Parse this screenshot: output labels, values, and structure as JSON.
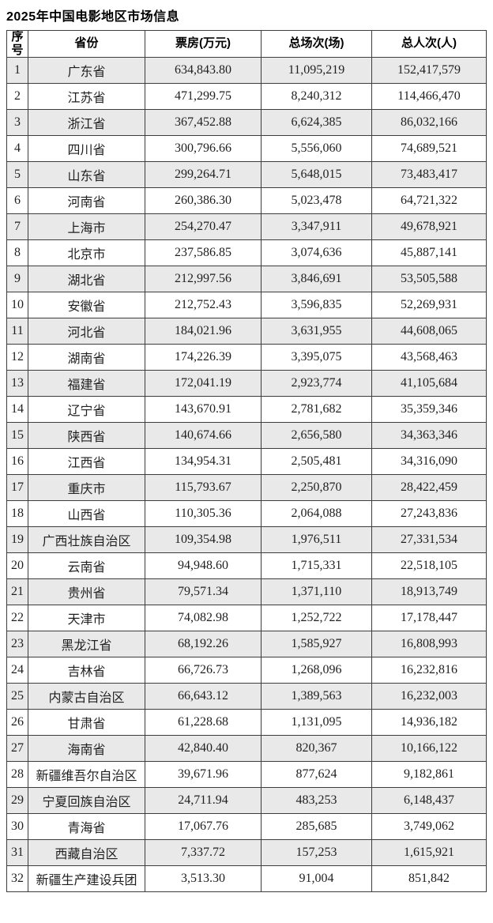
{
  "page_title": "2025年中国电影地区市场信息",
  "colors": {
    "row_stripe": "#e9e9e9",
    "border": "#3d3d3d",
    "header_text": "#000000",
    "body_text": "#1f1f1f",
    "background": "#ffffff"
  },
  "table": {
    "columns": [
      {
        "key": "index",
        "label": "序号"
      },
      {
        "key": "province",
        "label": "省份"
      },
      {
        "key": "box-office",
        "label": "票房(万元)"
      },
      {
        "key": "sessions",
        "label": "总场次(场)"
      },
      {
        "key": "admissions",
        "label": "总人次(人)"
      }
    ],
    "rows": [
      [
        "1",
        "广东省",
        "634,843.80",
        "11,095,219",
        "152,417,579"
      ],
      [
        "2",
        "江苏省",
        "471,299.75",
        "8,240,312",
        "114,466,470"
      ],
      [
        "3",
        "浙江省",
        "367,452.88",
        "6,624,385",
        "86,032,166"
      ],
      [
        "4",
        "四川省",
        "300,796.66",
        "5,556,060",
        "74,689,521"
      ],
      [
        "5",
        "山东省",
        "299,264.71",
        "5,648,015",
        "73,483,417"
      ],
      [
        "6",
        "河南省",
        "260,386.30",
        "5,023,478",
        "64,721,322"
      ],
      [
        "7",
        "上海市",
        "254,270.47",
        "3,347,911",
        "49,678,921"
      ],
      [
        "8",
        "北京市",
        "237,586.85",
        "3,074,636",
        "45,887,141"
      ],
      [
        "9",
        "湖北省",
        "212,997.56",
        "3,846,691",
        "53,505,588"
      ],
      [
        "10",
        "安徽省",
        "212,752.43",
        "3,596,835",
        "52,269,931"
      ],
      [
        "11",
        "河北省",
        "184,021.96",
        "3,631,955",
        "44,608,065"
      ],
      [
        "12",
        "湖南省",
        "174,226.39",
        "3,395,075",
        "43,568,463"
      ],
      [
        "13",
        "福建省",
        "172,041.19",
        "2,923,774",
        "41,105,684"
      ],
      [
        "14",
        "辽宁省",
        "143,670.91",
        "2,781,682",
        "35,359,346"
      ],
      [
        "15",
        "陕西省",
        "140,674.66",
        "2,656,580",
        "34,363,346"
      ],
      [
        "16",
        "江西省",
        "134,954.31",
        "2,505,481",
        "34,316,090"
      ],
      [
        "17",
        "重庆市",
        "115,793.67",
        "2,250,870",
        "28,422,459"
      ],
      [
        "18",
        "山西省",
        "110,305.36",
        "2,064,088",
        "27,243,836"
      ],
      [
        "19",
        "广西壮族自治区",
        "109,354.98",
        "1,976,511",
        "27,331,534"
      ],
      [
        "20",
        "云南省",
        "94,948.60",
        "1,715,331",
        "22,518,105"
      ],
      [
        "21",
        "贵州省",
        "79,571.34",
        "1,371,110",
        "18,913,749"
      ],
      [
        "22",
        "天津市",
        "74,082.98",
        "1,252,722",
        "17,178,447"
      ],
      [
        "23",
        "黑龙江省",
        "68,192.26",
        "1,585,927",
        "16,808,993"
      ],
      [
        "24",
        "吉林省",
        "66,726.73",
        "1,268,096",
        "16,232,816"
      ],
      [
        "25",
        "内蒙古自治区",
        "66,643.12",
        "1,389,563",
        "16,232,003"
      ],
      [
        "26",
        "甘肃省",
        "61,228.68",
        "1,131,095",
        "14,936,182"
      ],
      [
        "27",
        "海南省",
        "42,840.40",
        "820,367",
        "10,166,122"
      ],
      [
        "28",
        "新疆维吾尔自治区",
        "39,671.96",
        "877,624",
        "9,182,861"
      ],
      [
        "29",
        "宁夏回族自治区",
        "24,711.94",
        "483,253",
        "6,148,437"
      ],
      [
        "30",
        "青海省",
        "17,067.76",
        "285,685",
        "3,749,062"
      ],
      [
        "31",
        "西藏自治区",
        "7,337.72",
        "157,253",
        "1,615,921"
      ],
      [
        "32",
        "新疆生产建设兵团",
        "3,513.30",
        "91,004",
        "851,842"
      ]
    ]
  }
}
